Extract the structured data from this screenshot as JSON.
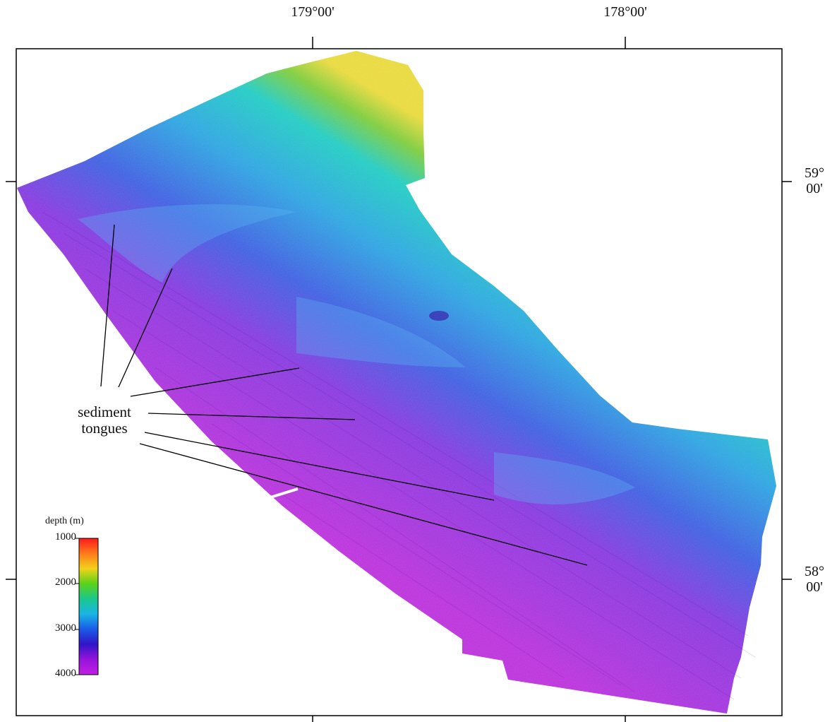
{
  "map": {
    "longitude_labels": [
      "179°00'",
      "178°00'"
    ],
    "latitude_labels": [
      {
        "deg": "59°",
        "min": "00'"
      },
      {
        "deg": "58°",
        "min": "00'"
      }
    ],
    "annotation": {
      "line1": "sediment",
      "line2": "tongues"
    },
    "colorbar": {
      "title": "depth (m)",
      "ticks": [
        "1000",
        "2000",
        "3000",
        "4000"
      ],
      "colors": [
        "#ff1a1a",
        "#ff7a1a",
        "#f0d21a",
        "#5ad21a",
        "#1ac88c",
        "#1ab4e6",
        "#1a5ae6",
        "#3214c8",
        "#9614dc",
        "#c31ee1"
      ]
    }
  }
}
